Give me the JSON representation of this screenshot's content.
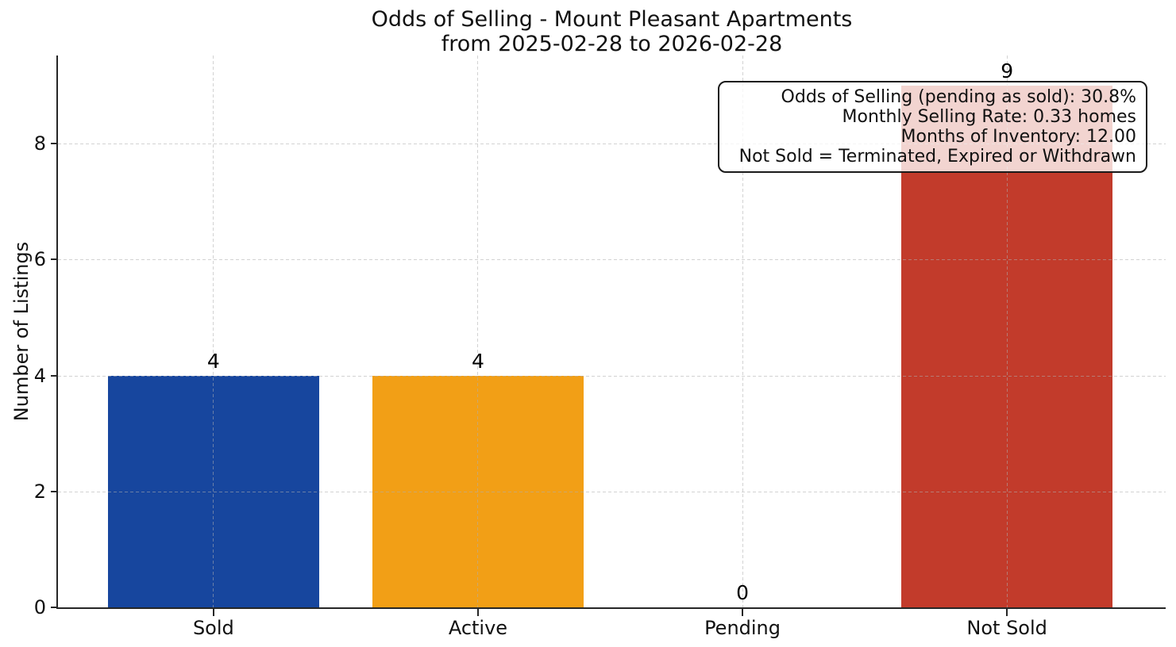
{
  "chart_data": {
    "type": "bar",
    "title": "Odds of Selling - Mount Pleasant Apartments",
    "subtitle": "from 2025-02-28 to 2026-02-28",
    "categories": [
      "Sold",
      "Active",
      "Pending",
      "Not Sold"
    ],
    "values": [
      4,
      4,
      0,
      9
    ],
    "value_labels": [
      "4",
      "4",
      "0",
      "9"
    ],
    "bar_colors": [
      "#17469e",
      "#f29f16",
      null,
      "#c23b2b"
    ],
    "xlabel": "",
    "ylabel": "Number of Listings",
    "yticks": [
      "0",
      "2",
      "4",
      "6",
      "8"
    ],
    "ytick_values": [
      0,
      2,
      4,
      6,
      8
    ],
    "ylim": [
      0,
      9.52
    ],
    "grid": true,
    "grid_style": "dashed",
    "legend": "none",
    "annotation": {
      "lines": [
        "Odds of Selling (pending as sold): 30.8%",
        "Monthly Selling Rate: 0.33 homes",
        "Months of Inventory: 12.00",
        "Not Sold = Terminated, Expired or Withdrawn"
      ]
    },
    "colors": {
      "background": "#ffffff",
      "axis": "#262626",
      "text": "#111111",
      "gridline": "#aeaeae"
    }
  }
}
